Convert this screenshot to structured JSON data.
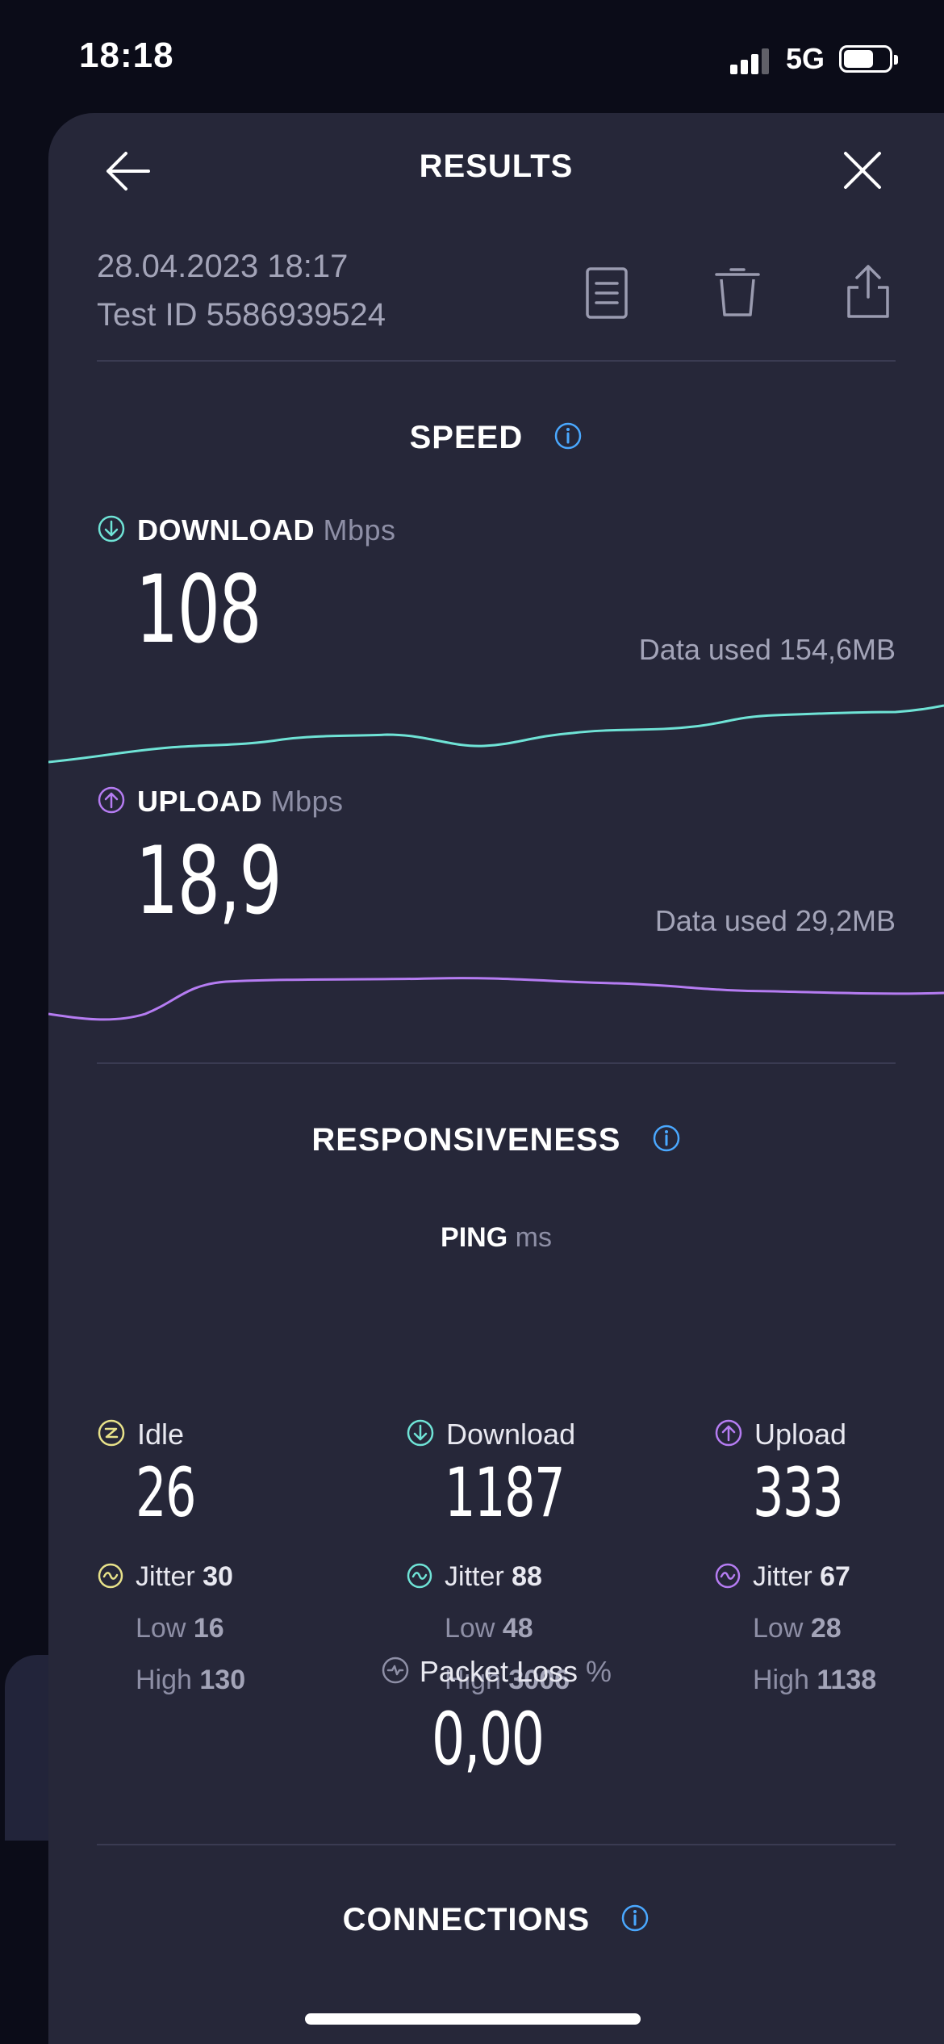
{
  "status_bar": {
    "time": "18:18",
    "network": "5G"
  },
  "header": {
    "title": "RESULTS"
  },
  "meta": {
    "date": "28.04.2023 18:17",
    "test_id": "Test ID 5586939524"
  },
  "speed": {
    "title": "SPEED",
    "download": {
      "label": "DOWNLOAD",
      "unit": "Mbps",
      "value": "108",
      "data_used": "Data used 154,6MB"
    },
    "upload": {
      "label": "UPLOAD",
      "unit": "Mbps",
      "value": "18,9",
      "data_used": "Data used 29,2MB"
    }
  },
  "responsiveness": {
    "title": "RESPONSIVENESS",
    "ping_label": "PING",
    "ping_unit": "ms",
    "columns": [
      {
        "label": "Idle",
        "value": "26",
        "jitter_label": "Jitter",
        "jitter": "30",
        "low_label": "Low",
        "low": "16",
        "high_label": "High",
        "high": "130"
      },
      {
        "label": "Download",
        "value": "1187",
        "jitter_label": "Jitter",
        "jitter": "88",
        "low_label": "Low",
        "low": "48",
        "high_label": "High",
        "high": "3006"
      },
      {
        "label": "Upload",
        "value": "333",
        "jitter_label": "Jitter",
        "jitter": "67",
        "low_label": "Low",
        "low": "28",
        "high_label": "High",
        "high": "1138"
      }
    ],
    "packet_loss": {
      "label": "Packet Loss",
      "unit": "%",
      "value": "0,00"
    }
  },
  "connections": {
    "title": "CONNECTIONS"
  },
  "colors": {
    "download": "#6fe3d6",
    "upload": "#b57cf2",
    "idle": "#e8e28a",
    "info": "#4aa8ff",
    "sheet_bg": "#262739",
    "page_bg": "#0b0c18"
  }
}
